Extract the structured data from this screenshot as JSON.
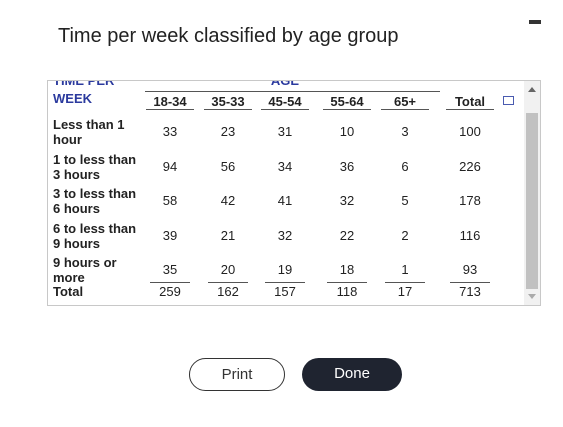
{
  "title": "Time per week classified by age group",
  "table": {
    "stub_header": [
      "TIME PER",
      "WEEK"
    ],
    "group_header": "AGE",
    "columns": [
      "18-34",
      "35-33",
      "45-54",
      "55-64",
      "65+",
      "Total"
    ],
    "rows": [
      {
        "label": "Less than 1 hour",
        "values": [
          33,
          23,
          31,
          10,
          3,
          100
        ]
      },
      {
        "label": "1 to less than 3 hours",
        "values": [
          94,
          56,
          34,
          36,
          6,
          226
        ]
      },
      {
        "label": "3 to less than 6 hours",
        "values": [
          58,
          42,
          41,
          32,
          5,
          178
        ]
      },
      {
        "label": "6 to less than 9 hours",
        "values": [
          39,
          21,
          32,
          22,
          2,
          116
        ]
      },
      {
        "label": "9 hours or more",
        "values": [
          35,
          20,
          19,
          18,
          1,
          93
        ]
      }
    ],
    "total": {
      "label": "Total",
      "values": [
        259,
        162,
        157,
        118,
        17,
        713
      ]
    }
  },
  "buttons": [
    "Print",
    "Done"
  ]
}
